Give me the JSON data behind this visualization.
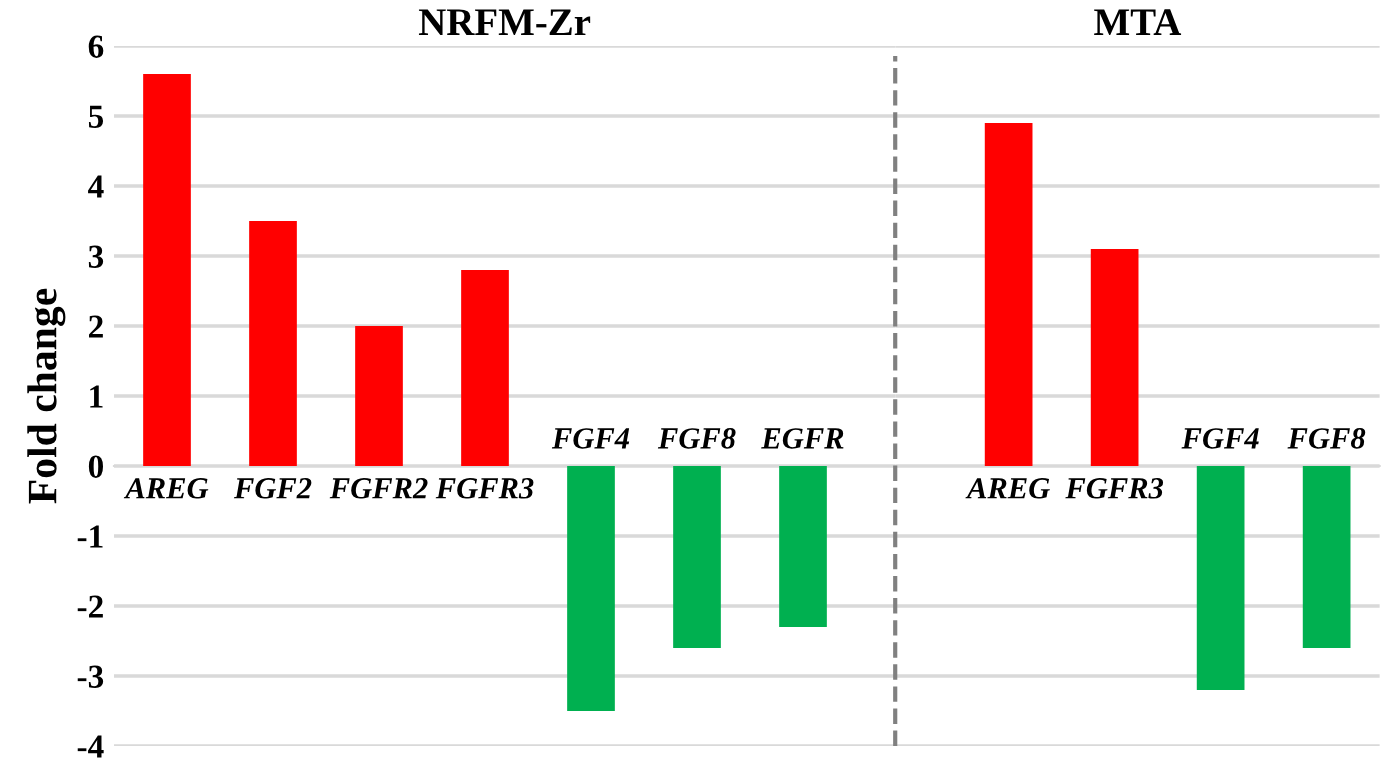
{
  "chart_data": [
    {
      "type": "bar",
      "title": "NRFM-Zr",
      "ylabel": "Fold change",
      "categories": [
        "AREG",
        "FGF2",
        "FGFR2",
        "FGFR3",
        "FGF4",
        "FGF8",
        "EGFR"
      ],
      "values": [
        5.6,
        3.5,
        2.0,
        2.8,
        -3.5,
        -2.6,
        -2.3
      ],
      "colors": [
        "#ff0000",
        "#ff0000",
        "#ff0000",
        "#ff0000",
        "#00b050",
        "#00b050",
        "#00b050"
      ],
      "ylim": [
        -4,
        6
      ],
      "yticks": [
        -4,
        -3,
        -2,
        -1,
        0,
        1,
        2,
        3,
        4,
        5,
        6
      ],
      "grid": "y"
    },
    {
      "type": "bar",
      "title": "MTA",
      "categories": [
        "AREG",
        "FGFR3",
        "FGF4",
        "FGF8"
      ],
      "values": [
        4.9,
        3.1,
        -3.2,
        -2.6
      ],
      "colors": [
        "#ff0000",
        "#ff0000",
        "#00b050",
        "#00b050"
      ],
      "ylim": [
        -4,
        6
      ],
      "yticks": [
        -4,
        -3,
        -2,
        -1,
        0,
        1,
        2,
        3,
        4,
        5,
        6
      ],
      "grid": "y",
      "tick_labels": "x"
    }
  ]
}
